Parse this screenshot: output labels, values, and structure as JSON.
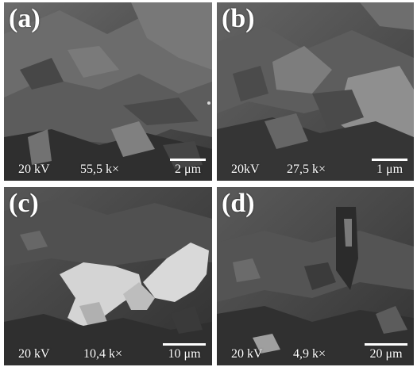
{
  "panels": [
    {
      "label": "(a)",
      "voltage": "20 kV",
      "magnification": "55,5 k×",
      "scale_bar": "2 μm"
    },
    {
      "label": "(b)",
      "voltage": "20kV",
      "magnification": "27,5 k×",
      "scale_bar": "1 μm"
    },
    {
      "label": "(c)",
      "voltage": "20 kV",
      "magnification": "10,4 k×",
      "scale_bar": "10 μm"
    },
    {
      "label": "(d)",
      "voltage": "20 kV",
      "magnification": "4,9 k×",
      "scale_bar": "20 μm"
    }
  ]
}
